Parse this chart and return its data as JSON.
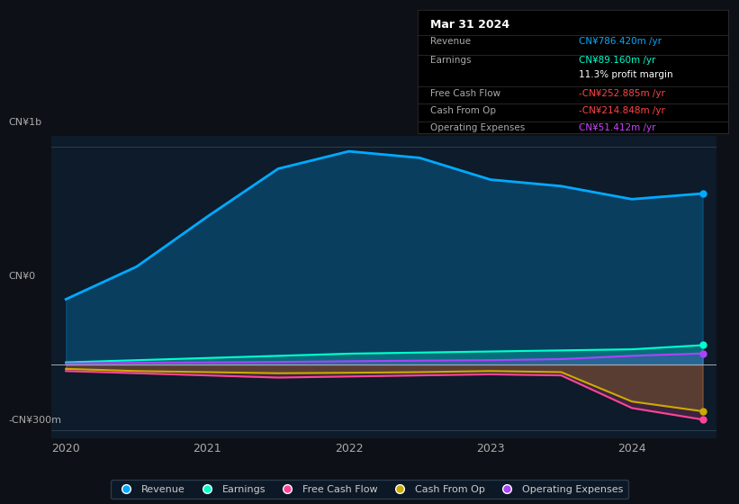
{
  "bg_color": "#0d1117",
  "plot_bg_color": "#0d1b2a",
  "title_box": {
    "date": "Mar 31 2024",
    "rows": [
      {
        "label": "Revenue",
        "value": "CN¥786.420m /yr",
        "value_color": "#00aaff"
      },
      {
        "label": "Earnings",
        "value": "CN¥89.160m /yr",
        "value_color": "#00ffcc"
      },
      {
        "label": "",
        "value": "11.3% profit margin",
        "value_color": "#ffffff"
      },
      {
        "label": "Free Cash Flow",
        "value": "-CN¥252.885m /yr",
        "value_color": "#ff4444"
      },
      {
        "label": "Cash From Op",
        "value": "-CN¥214.848m /yr",
        "value_color": "#ff4444"
      },
      {
        "label": "Operating Expenses",
        "value": "CN¥51.412m /yr",
        "value_color": "#cc44ff"
      }
    ]
  },
  "ylabel_top": "CN¥1b",
  "ylabel_zero": "CN¥0",
  "ylabel_bottom": "-CN¥300m",
  "x_ticks": [
    "2020",
    "2021",
    "2022",
    "2023",
    "2024"
  ],
  "x_values": [
    0,
    0.5,
    1.0,
    1.5,
    2.0,
    2.5,
    3.0,
    3.5,
    4.0,
    4.5
  ],
  "revenue": [
    300,
    450,
    680,
    900,
    980,
    950,
    850,
    820,
    760,
    786
  ],
  "earnings": [
    10,
    20,
    30,
    40,
    50,
    55,
    60,
    65,
    70,
    89
  ],
  "free_cf": [
    -30,
    -40,
    -50,
    -60,
    -55,
    -50,
    -45,
    -50,
    -200,
    -253
  ],
  "cash_from_op": [
    -20,
    -30,
    -35,
    -40,
    -38,
    -35,
    -30,
    -35,
    -170,
    -215
  ],
  "op_expenses": [
    5,
    8,
    10,
    12,
    15,
    18,
    20,
    25,
    40,
    51
  ],
  "revenue_color": "#00aaff",
  "earnings_color": "#00ffcc",
  "free_cf_color": "#ff4499",
  "cash_from_op_color": "#ccaa00",
  "op_expenses_color": "#aa44ff",
  "legend": [
    {
      "label": "Revenue",
      "color": "#00aaff"
    },
    {
      "label": "Earnings",
      "color": "#00ffcc"
    },
    {
      "label": "Free Cash Flow",
      "color": "#ff4499"
    },
    {
      "label": "Cash From Op",
      "color": "#ccaa00"
    },
    {
      "label": "Operating Expenses",
      "color": "#aa44ff"
    }
  ]
}
